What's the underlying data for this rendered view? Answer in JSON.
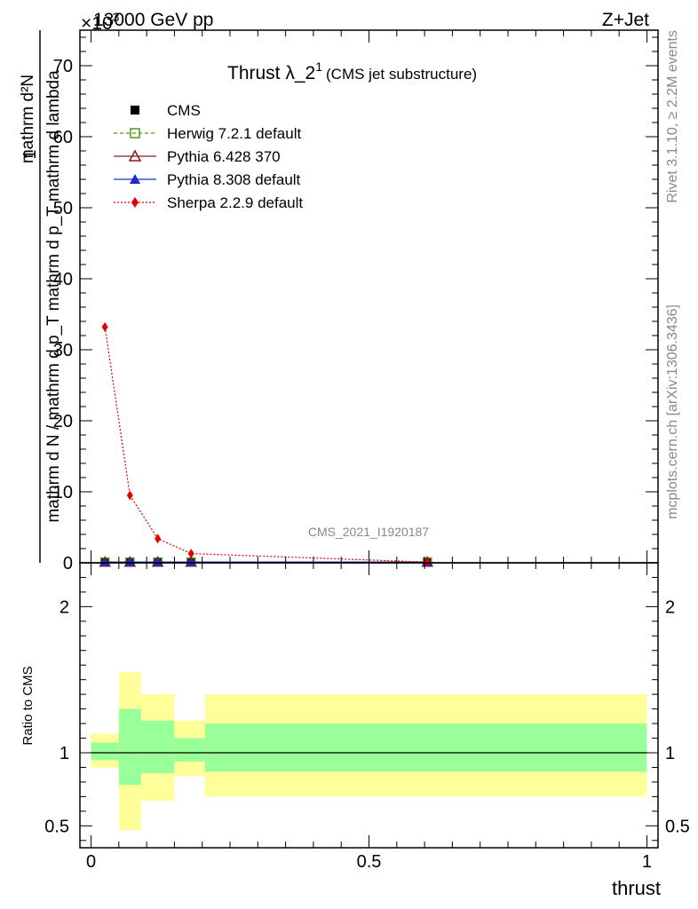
{
  "header": {
    "energy": "13000 GeV pp",
    "process": "Z+Jet",
    "exponent": "×10",
    "exponent_power": "3"
  },
  "side_labels": {
    "rivet": "Rivet 3.1.10, ≥ 2.2M events",
    "mcplots": "mcplots.cern.ch [arXiv:1306.3436]"
  },
  "chart_data": [
    {
      "type": "line",
      "title_main": "Thrust λ_2",
      "title_sup": "1",
      "title_sub": "(CMS jet substructure)",
      "ylabel_numerator": "mathrm d²N",
      "ylabel_denominator": "mathrm d N / mathrm d p_T mathrm d p_T mathrm d lambda",
      "ylabel_one": "1",
      "ylim": [
        0,
        75
      ],
      "xlim": [
        -0.02,
        1.02
      ],
      "yticks": [
        0,
        10,
        20,
        30,
        40,
        50,
        60,
        70
      ],
      "ytick_labels": [
        "0",
        "10",
        "20",
        "30",
        "40",
        "50",
        "60",
        "70"
      ],
      "watermark": "CMS_2021_I1920187",
      "legend_position": "top-left",
      "legend": [
        {
          "name": "CMS",
          "color": "#000000",
          "marker": "square-filled",
          "line": "none"
        },
        {
          "name": "Herwig 7.2.1 default",
          "color": "#4a9a1a",
          "marker": "square-open",
          "line": "dashed"
        },
        {
          "name": "Pythia 6.428 370",
          "color": "#8b1a1a",
          "marker": "triangle-open",
          "line": "solid"
        },
        {
          "name": "Pythia 8.308 default",
          "color": "#1a2ad0",
          "marker": "triangle-filled",
          "line": "solid"
        },
        {
          "name": "Sherpa 2.2.9 default",
          "color": "#e00000",
          "marker": "diamond-filled",
          "line": "dotted"
        }
      ],
      "x": [
        0.025,
        0.07,
        0.12,
        0.18,
        0.605
      ],
      "series": [
        {
          "name": "CMS",
          "values": [
            0.1,
            0.1,
            0.1,
            0.1,
            0.1
          ]
        },
        {
          "name": "Herwig 7.2.1 default",
          "values": [
            0.1,
            0.1,
            0.1,
            0.1,
            0.1
          ]
        },
        {
          "name": "Pythia 6.428 370",
          "values": [
            0.1,
            0.1,
            0.1,
            0.1,
            0.1
          ]
        },
        {
          "name": "Pythia 8.308 default",
          "values": [
            0.1,
            0.1,
            0.1,
            0.1,
            0.1
          ]
        },
        {
          "name": "Sherpa 2.2.9 default",
          "values": [
            33.2,
            9.5,
            3.4,
            1.3,
            0.1
          ]
        }
      ]
    },
    {
      "type": "area",
      "ylabel": "Ratio to CMS",
      "xlabel": "thrust",
      "ylim": [
        0.35,
        2.3
      ],
      "xlim": [
        -0.02,
        1.02
      ],
      "reference": 1.0,
      "xticks": [
        0,
        0.5,
        1
      ],
      "xtick_labels": [
        "0",
        "0.5",
        "1"
      ],
      "yticks": [
        0.5,
        1,
        2
      ],
      "ytick_labels": [
        "0.5",
        "1",
        "2"
      ],
      "bins": [
        {
          "x0": 0.0,
          "x1": 0.05,
          "green_lo": 0.95,
          "green_hi": 1.07,
          "yellow_lo": 0.9,
          "yellow_hi": 1.13
        },
        {
          "x0": 0.05,
          "x1": 0.09,
          "green_lo": 0.78,
          "green_hi": 1.3,
          "yellow_lo": 0.47,
          "yellow_hi": 1.55
        },
        {
          "x0": 0.09,
          "x1": 0.15,
          "green_lo": 0.86,
          "green_hi": 1.22,
          "yellow_lo": 0.67,
          "yellow_hi": 1.4
        },
        {
          "x0": 0.15,
          "x1": 0.205,
          "green_lo": 0.94,
          "green_hi": 1.1,
          "yellow_lo": 0.84,
          "yellow_hi": 1.22
        },
        {
          "x0": 0.205,
          "x1": 1.0,
          "green_lo": 0.87,
          "green_hi": 1.2,
          "yellow_lo": 0.7,
          "yellow_hi": 1.4
        }
      ]
    }
  ]
}
